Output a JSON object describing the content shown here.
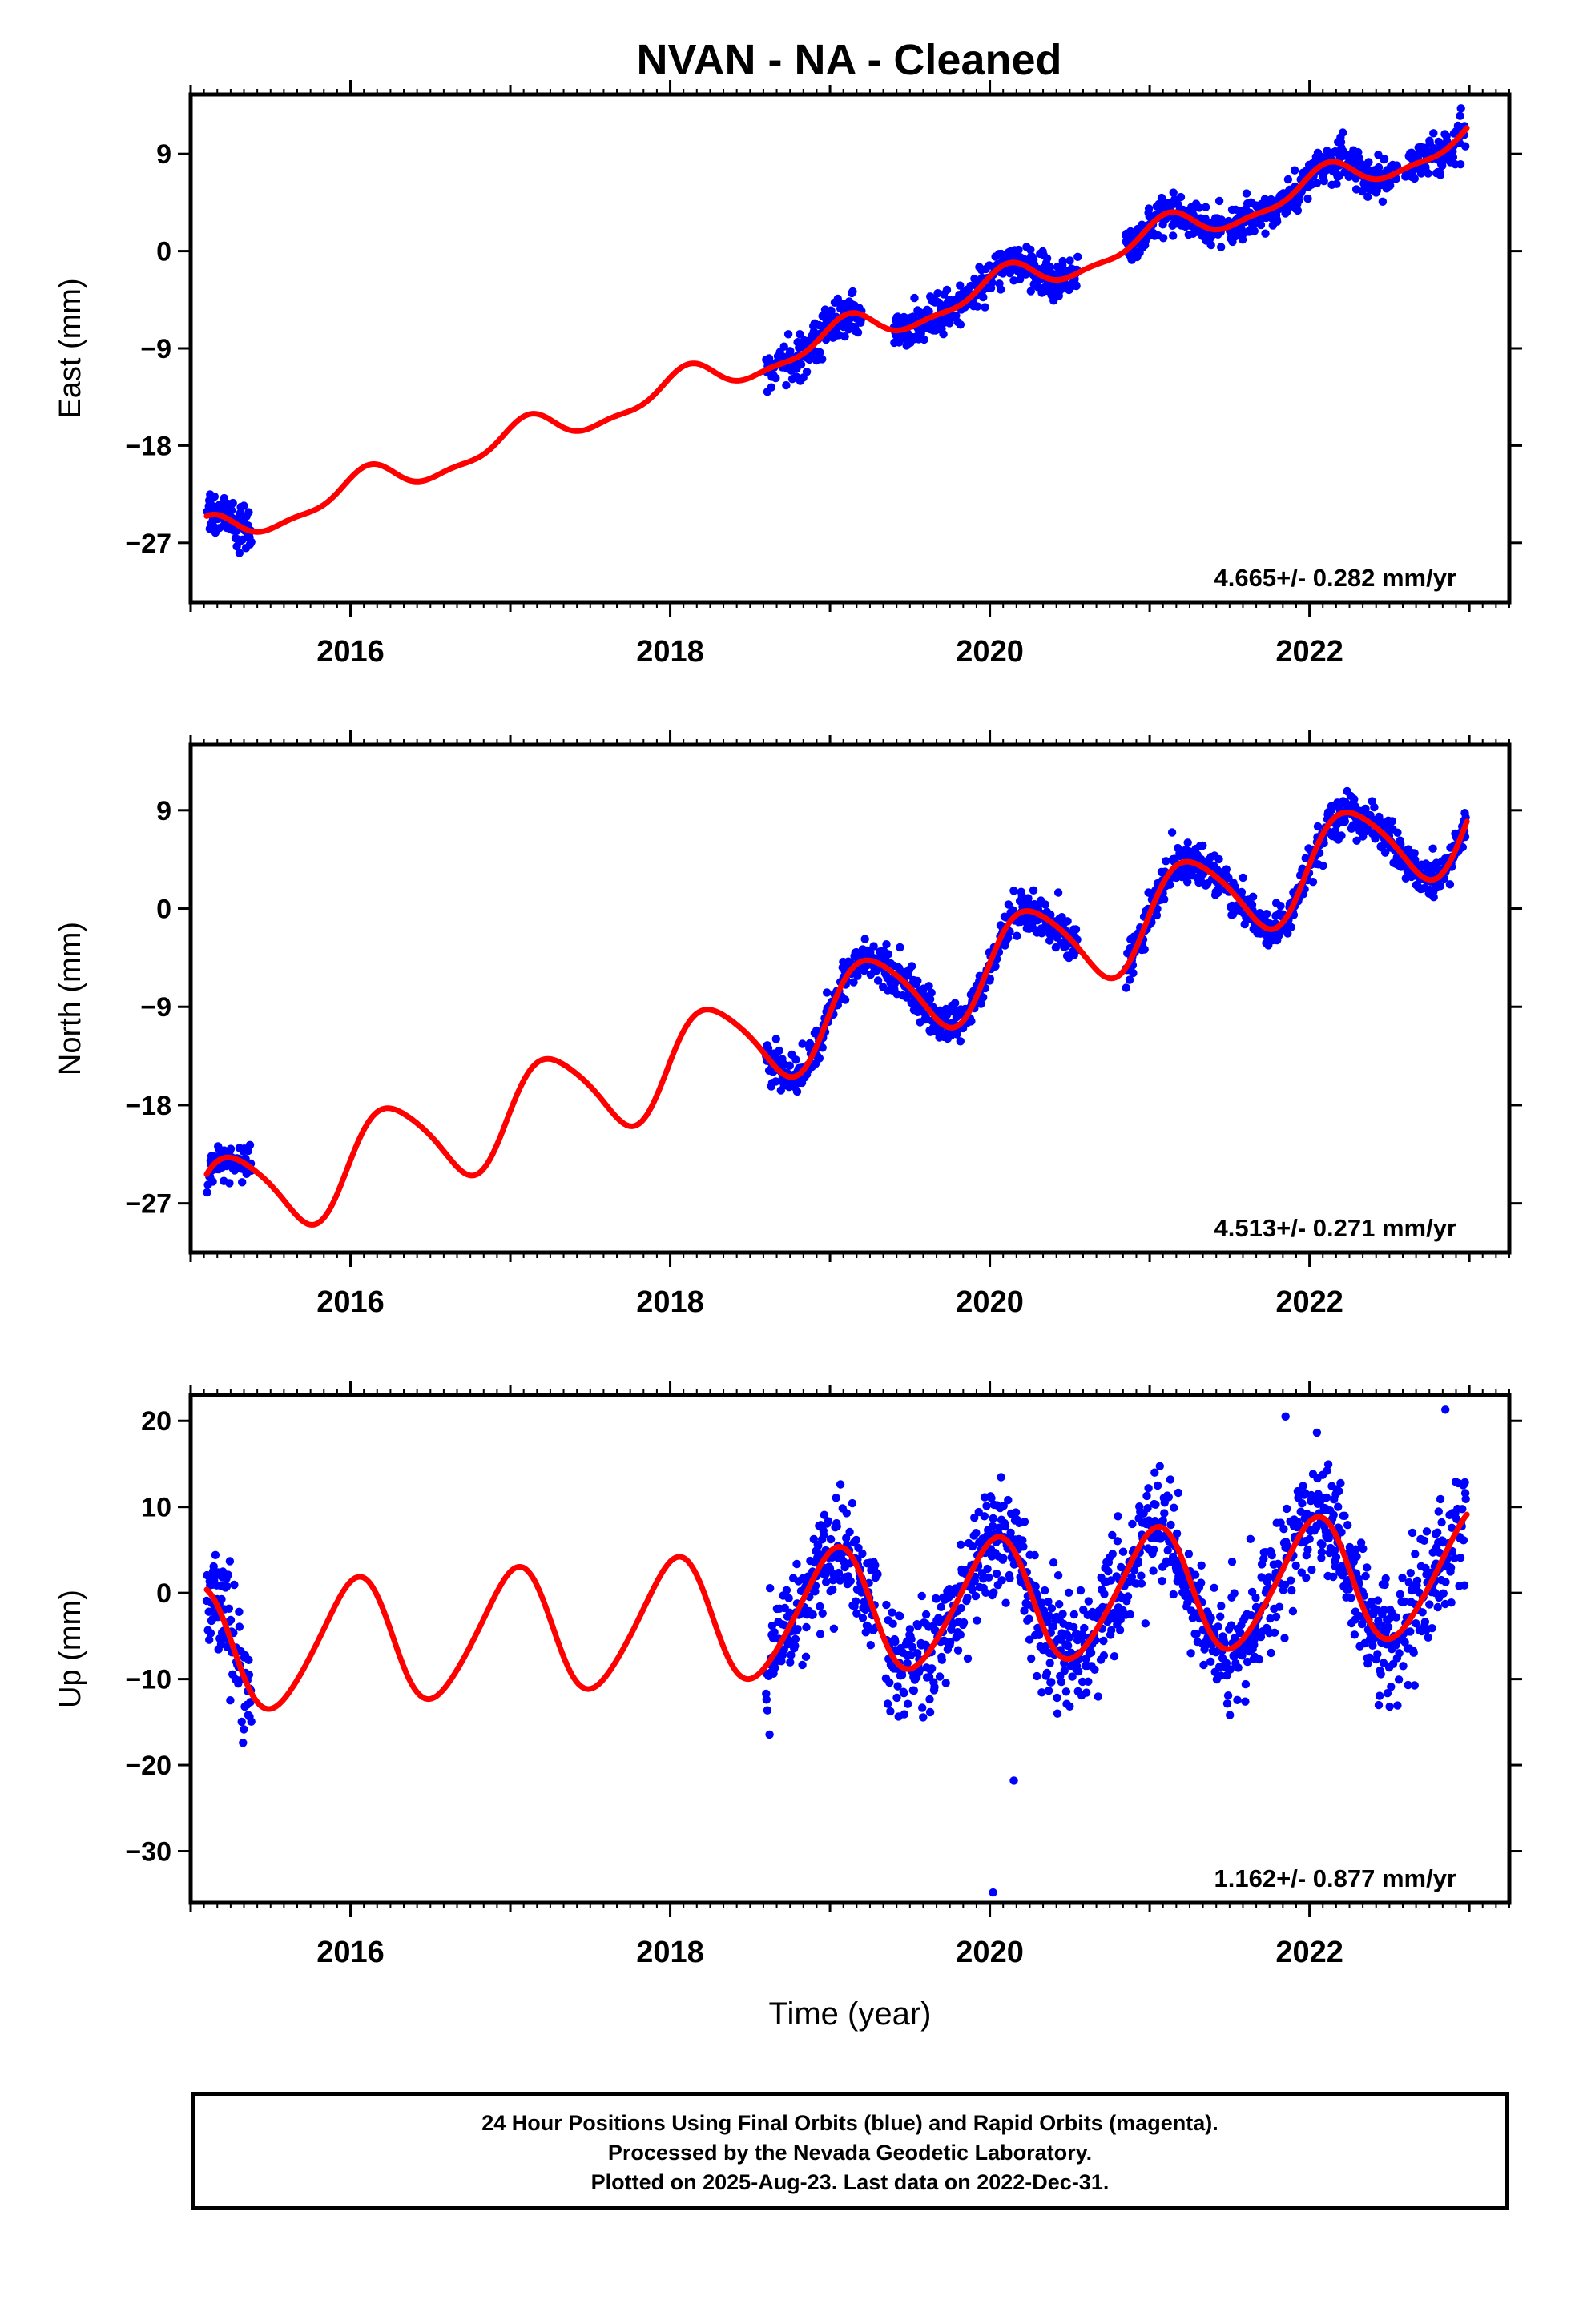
{
  "title": "NVAN  - NA - Cleaned",
  "colors": {
    "data_points": "#0000ff",
    "model_curve": "#ff0000",
    "frame": "#000000"
  },
  "chart_data": [
    {
      "type": "scatter",
      "component": "east",
      "ylabel": "East (mm)",
      "xlabel": "",
      "xlim": [
        2015.0,
        2023.25
      ],
      "ylim": [
        -32.5,
        14.5
      ],
      "x_ticks": [
        2016,
        2018,
        2020,
        2022
      ],
      "x_tick_labels": [
        "2016",
        "2018",
        "2020",
        "2022"
      ],
      "y_ticks": [
        -27,
        -18,
        -9,
        0,
        9
      ],
      "y_tick_labels": [
        "−27",
        "−18",
        "−9",
        "0",
        "9"
      ],
      "velocity_label": "4.665+/- 0.282 mm/yr",
      "model": {
        "ref": 2019.0,
        "offset": -8.2,
        "slope": 4.665,
        "amp1": 1.4,
        "phase1": 1.0,
        "amp2": 0.5,
        "phase2": 0.0
      },
      "data_segments": [
        [
          2015.1,
          2015.38
        ],
        [
          2018.6,
          2019.2
        ],
        [
          2019.4,
          2020.55
        ],
        [
          2020.85,
          2021.45
        ],
        [
          2021.48,
          2022.55
        ],
        [
          2022.6,
          2022.98
        ]
      ],
      "noise_sd": 0.9,
      "annual_variation": "seasonal-sinusoid"
    },
    {
      "type": "scatter",
      "component": "north",
      "ylabel": "North (mm)",
      "xlabel": "",
      "xlim": [
        2015.0,
        2023.25
      ],
      "ylim": [
        -31.5,
        15.0
      ],
      "x_ticks": [
        2016,
        2018,
        2020,
        2022
      ],
      "x_tick_labels": [
        "2016",
        "2018",
        "2020",
        "2022"
      ],
      "y_ticks": [
        -27,
        -18,
        -9,
        0,
        9
      ],
      "y_tick_labels": [
        "−27",
        "−18",
        "−9",
        "0",
        "9"
      ],
      "velocity_label": "4.513+/- 0.271 mm/yr",
      "model": {
        "ref": 2019.0,
        "offset": -9.8,
        "slope": 4.513,
        "amp1": 4.2,
        "phase1": 0.0,
        "amp2": 0.6,
        "phase2": 0.5
      },
      "data_segments": [
        [
          2015.1,
          2015.38
        ],
        [
          2018.6,
          2020.55
        ],
        [
          2020.85,
          2022.98
        ]
      ],
      "noise_sd": 0.9,
      "annual_variation": "seasonal-sinusoid"
    },
    {
      "type": "scatter",
      "component": "up",
      "ylabel": "Up (mm)",
      "xlabel": "Time (year)",
      "xlim": [
        2015.0,
        2023.25
      ],
      "ylim": [
        -36.0,
        23.0
      ],
      "x_ticks": [
        2016,
        2018,
        2020,
        2022
      ],
      "x_tick_labels": [
        "2016",
        "2018",
        "2020",
        "2022"
      ],
      "y_ticks": [
        -30,
        -20,
        -10,
        0,
        10,
        20
      ],
      "y_tick_labels": [
        "−30",
        "−20",
        "−10",
        "0",
        "10",
        "20"
      ],
      "velocity_label": "1.162+/- 0.877 mm/yr",
      "model": {
        "ref": 2019.0,
        "offset": -2.3,
        "slope": 1.162,
        "amp1": 7.2,
        "phase1": 1.4,
        "amp2": 0.8,
        "phase2": 0.0
      },
      "data_segments": [
        [
          2015.1,
          2015.38
        ],
        [
          2018.6,
          2019.3
        ],
        [
          2019.35,
          2022.98
        ]
      ],
      "noise_sd": 3.2,
      "annual_variation": "seasonal-sinusoid",
      "outliers": [
        [
          2020.02,
          -34.8
        ],
        [
          2020.15,
          -21.8
        ],
        [
          2021.85,
          20.5
        ],
        [
          2022.85,
          21.3
        ]
      ]
    }
  ],
  "footer": {
    "line1": "24 Hour Positions Using Final Orbits (blue) and Rapid Orbits (magenta).",
    "line2": "Processed by the Nevada Geodetic Laboratory.",
    "line3": "Plotted on 2025-Aug-23. Last data on 2022-Dec-31."
  }
}
